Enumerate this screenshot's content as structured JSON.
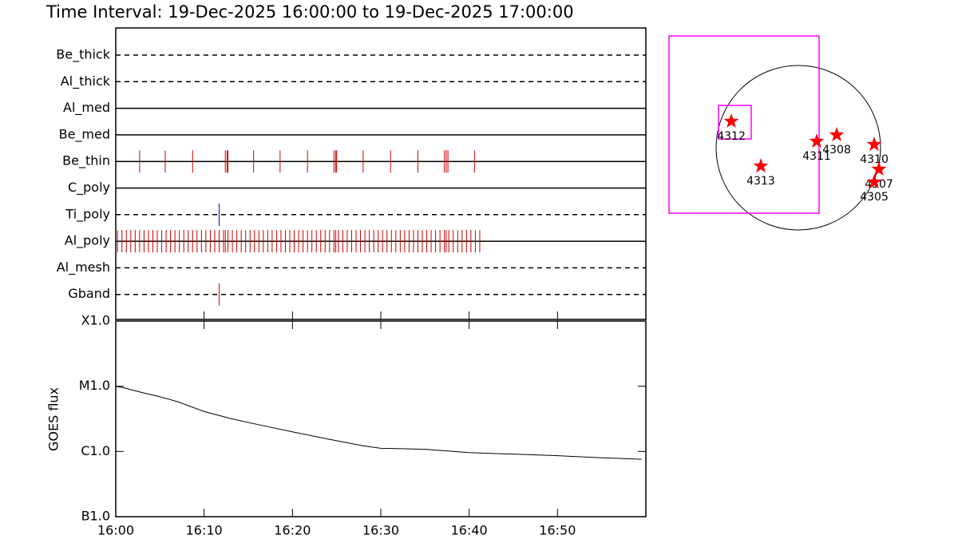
{
  "chart_data": [
    {
      "type": "timeline",
      "title": "Time Interval: 19-Dec-2025 16:00:00 to 19-Dec-2025 17:00:00",
      "xlim": [
        0,
        60
      ],
      "rows": [
        {
          "name": "Be_thick",
          "style": "dashed",
          "color": "#000000",
          "events": []
        },
        {
          "name": "Al_thick",
          "style": "dashed",
          "color": "#000000",
          "events": []
        },
        {
          "name": "Al_med",
          "style": "solid",
          "color": "#000000",
          "events": []
        },
        {
          "name": "Be_med",
          "style": "solid",
          "color": "#000000",
          "events": []
        },
        {
          "name": "Be_thin",
          "style": "solid",
          "color": "#cc0000",
          "events": [
            2.7,
            5.6,
            8.7,
            12.4,
            12.6,
            12.7,
            15.6,
            18.6,
            21.7,
            24.7,
            24.9,
            25.0,
            28.0,
            31.1,
            34.2,
            37.2,
            37.4,
            37.6,
            40.6
          ]
        },
        {
          "name": "C_poly",
          "style": "solid",
          "color": "#000000",
          "events": []
        },
        {
          "name": "Ti_poly",
          "style": "dashed",
          "color": "#0000cc",
          "events": [
            11.7
          ]
        },
        {
          "name": "Al_poly",
          "style": "solid",
          "color": "#cc0000",
          "events": [
            0.2,
            0.7,
            1.2,
            1.7,
            2.2,
            2.7,
            3.2,
            3.7,
            4.2,
            4.7,
            5.2,
            5.7,
            6.2,
            6.7,
            7.2,
            7.7,
            8.2,
            8.7,
            9.2,
            9.7,
            10.2,
            10.7,
            11.2,
            11.7,
            12.2,
            12.4,
            12.7,
            13.2,
            13.7,
            14.2,
            14.7,
            15.2,
            15.7,
            16.2,
            16.7,
            17.2,
            17.7,
            18.2,
            18.7,
            19.2,
            19.7,
            20.2,
            20.7,
            21.2,
            21.7,
            22.2,
            22.7,
            23.2,
            23.7,
            24.2,
            24.7,
            24.9,
            25.2,
            25.7,
            26.2,
            26.7,
            27.2,
            27.7,
            28.2,
            28.7,
            29.2,
            29.7,
            30.2,
            30.7,
            31.2,
            31.7,
            32.2,
            32.7,
            33.2,
            33.7,
            34.2,
            34.7,
            35.2,
            35.7,
            36.2,
            36.7,
            37.2,
            37.4,
            37.7,
            38.2,
            38.7,
            39.2,
            39.7,
            40.2,
            40.7,
            41.2
          ]
        },
        {
          "name": "Al_mesh",
          "style": "dashed",
          "color": "#000000",
          "events": []
        },
        {
          "name": "Gband",
          "style": "dashed",
          "color": "#cc0000",
          "events": [
            11.7
          ]
        }
      ]
    },
    {
      "type": "line",
      "ylabel": "GOES flux",
      "log": true,
      "xlim": [
        0,
        60
      ],
      "xticks": [
        {
          "value": 0,
          "label": "16:00"
        },
        {
          "value": 10,
          "label": "16:10"
        },
        {
          "value": 20,
          "label": "16:20"
        },
        {
          "value": 30,
          "label": "16:30"
        },
        {
          "value": 40,
          "label": "16:40"
        },
        {
          "value": 50,
          "label": "16:50"
        }
      ],
      "ylim": [
        1e-07,
        0.0001
      ],
      "yticks": [
        {
          "value": 1e-07,
          "label": "B1.0"
        },
        {
          "value": 1e-06,
          "label": "C1.0"
        },
        {
          "value": 1e-05,
          "label": "M1.0"
        },
        {
          "value": 0.0001,
          "label": "X1.0"
        }
      ],
      "x": [
        0,
        1,
        3,
        5,
        7,
        10,
        13,
        16,
        20,
        24,
        28,
        30,
        35,
        40,
        45,
        50,
        55,
        59.5
      ],
      "values": [
        1e-05,
        9.4e-06,
        8e-06,
        6.9e-06,
        5.8e-06,
        4.1e-06,
        3.2e-06,
        2.6e-06,
        2e-06,
        1.55e-06,
        1.22e-06,
        1.12e-06,
        1.08e-06,
        9.6e-07,
        9.1e-07,
        8.6e-07,
        8e-07,
        7.6e-07
      ],
      "color": "#000000"
    },
    {
      "type": "map",
      "xlim": [
        -1534,
        1534
      ],
      "ylim": [
        -1534,
        1534
      ],
      "radius": 975,
      "boxes": [
        {
          "x": [
            -1534,
            246
          ],
          "y": [
            -777,
            1326
          ],
          "color": "#ff00ff"
        },
        {
          "x": [
            -947,
            -559
          ],
          "y": [
            104,
            502
          ],
          "color": "#ff00ff"
        }
      ],
      "color": "#ff0000",
      "points": [
        {
          "name": "4312",
          "x": -795,
          "y": 313
        },
        {
          "name": "4313",
          "x": -445,
          "y": -218
        },
        {
          "name": "4311",
          "x": 218,
          "y": 76
        },
        {
          "name": "4308",
          "x": 455,
          "y": 152
        },
        {
          "name": "4310",
          "x": 900,
          "y": 38
        },
        {
          "name": "4307",
          "x": 956,
          "y": -256
        },
        {
          "name": "4305",
          "x": 900,
          "y": -407
        }
      ]
    }
  ]
}
